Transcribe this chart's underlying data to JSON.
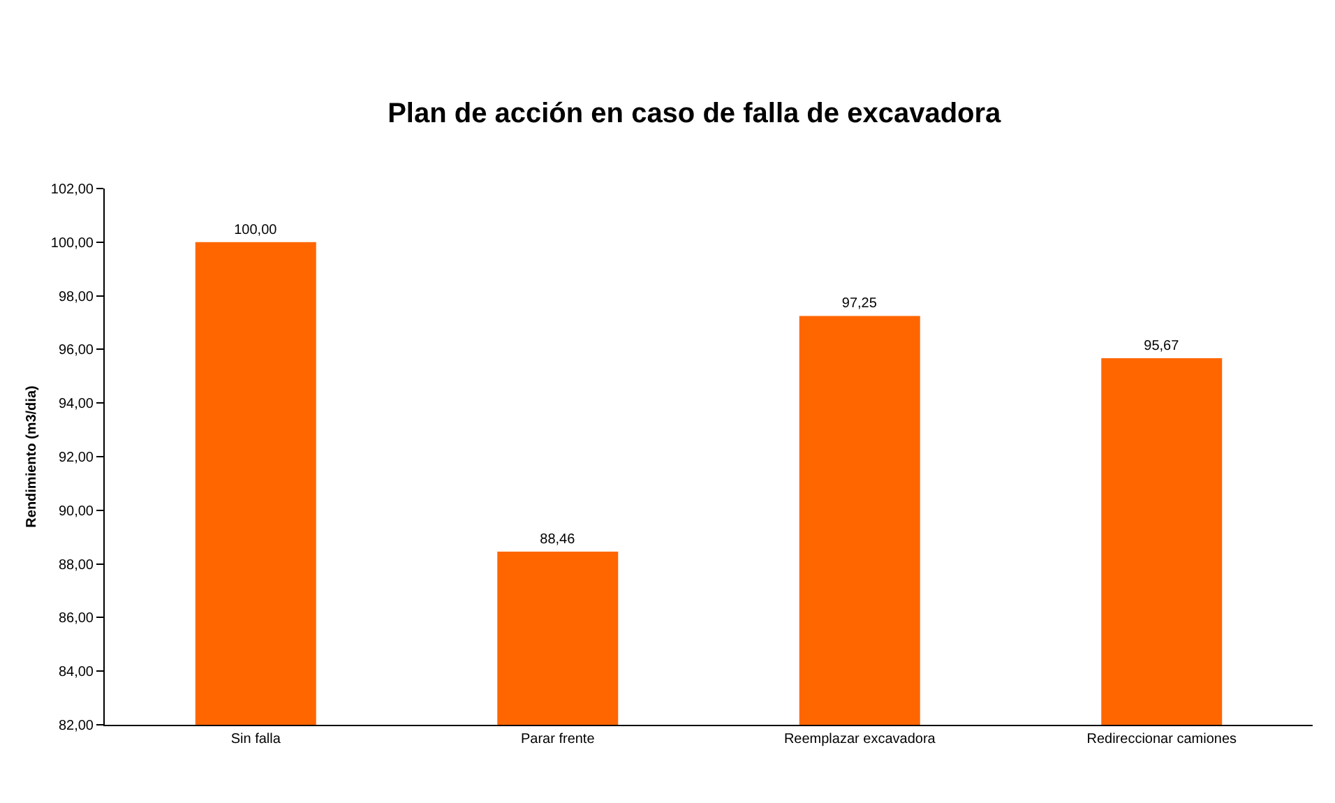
{
  "chart_data": {
    "type": "bar",
    "title": "Plan de acción en caso de falla de excavadora",
    "ylabel": "Rendimiento (m3/dia)",
    "categories": [
      "Sin falla",
      "Parar frente",
      "Reemplazar excavadora",
      "Redireccionar camiones"
    ],
    "values": [
      100.0,
      88.46,
      97.25,
      95.67
    ],
    "value_labels": [
      "100,00",
      "88,46",
      "97,25",
      "95,67"
    ],
    "color": "#ff6600",
    "ylim": [
      82,
      102
    ],
    "yticks": [
      {
        "value": 82,
        "label": "82,00"
      },
      {
        "value": 84,
        "label": "84,00"
      },
      {
        "value": 86,
        "label": "86,00"
      },
      {
        "value": 88,
        "label": "88,00"
      },
      {
        "value": 90,
        "label": "90,00"
      },
      {
        "value": 92,
        "label": "92,00"
      },
      {
        "value": 94,
        "label": "94,00"
      },
      {
        "value": 96,
        "label": "96,00"
      },
      {
        "value": 98,
        "label": "98,00"
      },
      {
        "value": 100,
        "label": "100,00"
      },
      {
        "value": 102,
        "label": "102,00"
      }
    ],
    "grid": false,
    "legend": false
  }
}
